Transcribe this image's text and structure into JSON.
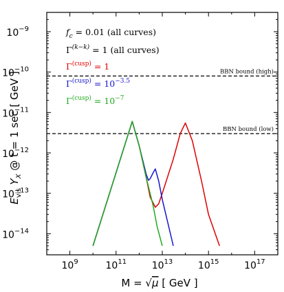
{
  "chart_data": {
    "type": "line",
    "xlabel": "M = √μ  [ GeV ]",
    "ylabel": "E_vis Y_X @ t = 1 sec [ GeV ]",
    "xscale": "log",
    "yscale": "log",
    "xlim": [
      100000000.0,
      1e+18
    ],
    "ylim": [
      3e-15,
      3e-09
    ],
    "x_ticks": [
      9,
      11,
      13,
      15,
      17
    ],
    "y_ticks": [
      -9,
      -10,
      -11,
      -12,
      -13,
      -14
    ],
    "grid": false,
    "legend": "top-left",
    "annotations": [
      {
        "text": "f_c = 0.01 (all curves)",
        "color": "#000000"
      },
      {
        "text": "Γ^(k-k) = 1 (all curves)",
        "color": "#000000"
      }
    ],
    "series": [
      {
        "name": "Γ^(cusp) = 1",
        "color": "#dd0000",
        "x": [
          10000000000.0,
          500000000000.0,
          1000000000000.0,
          2000000000000.0,
          3000000000000.0,
          5000000000000.0,
          7000000000000.0,
          10000000000000.0,
          30000000000000.0,
          60000000000000.0,
          100000000000000.0,
          200000000000000.0,
          500000000000000.0,
          1000000000000000.0,
          3000000000000000.0
        ],
        "y": [
          5e-15,
          6e-12,
          1.5e-12,
          2.5e-13,
          8e-14,
          4.5e-14,
          5.5e-14,
          1e-13,
          7e-13,
          3e-12,
          5.5e-12,
          2e-12,
          2e-13,
          3e-14,
          5e-15
        ]
      },
      {
        "name": "Γ^(cusp) = 10^-3.5",
        "color": "#1515cc",
        "x": [
          10000000000.0,
          500000000000.0,
          1000000000000.0,
          2000000000000.0,
          2500000000000.0,
          3000000000000.0,
          4000000000000.0,
          5000000000000.0,
          7000000000000.0,
          10000000000000.0,
          30000000000000.0
        ],
        "y": [
          5e-15,
          6e-12,
          1.5e-12,
          3e-13,
          2.1e-13,
          2.3e-13,
          3.2e-13,
          4e-13,
          2e-13,
          7e-14,
          5e-15
        ]
      },
      {
        "name": "Γ^(cusp) = 10^-7",
        "color": "#22aa22",
        "x": [
          10000000000.0,
          500000000000.0,
          1000000000000.0,
          2000000000000.0,
          4000000000000.0,
          6000000000000.0,
          10000000000000.0
        ],
        "y": [
          5e-15,
          6e-12,
          1.5e-12,
          2.5e-13,
          5e-14,
          1.5e-14,
          5e-15
        ]
      }
    ],
    "bounds": [
      {
        "label": "BBN bound (high)",
        "y": 8e-11
      },
      {
        "label": "BBN bound (low)",
        "y": 3e-12
      }
    ]
  }
}
